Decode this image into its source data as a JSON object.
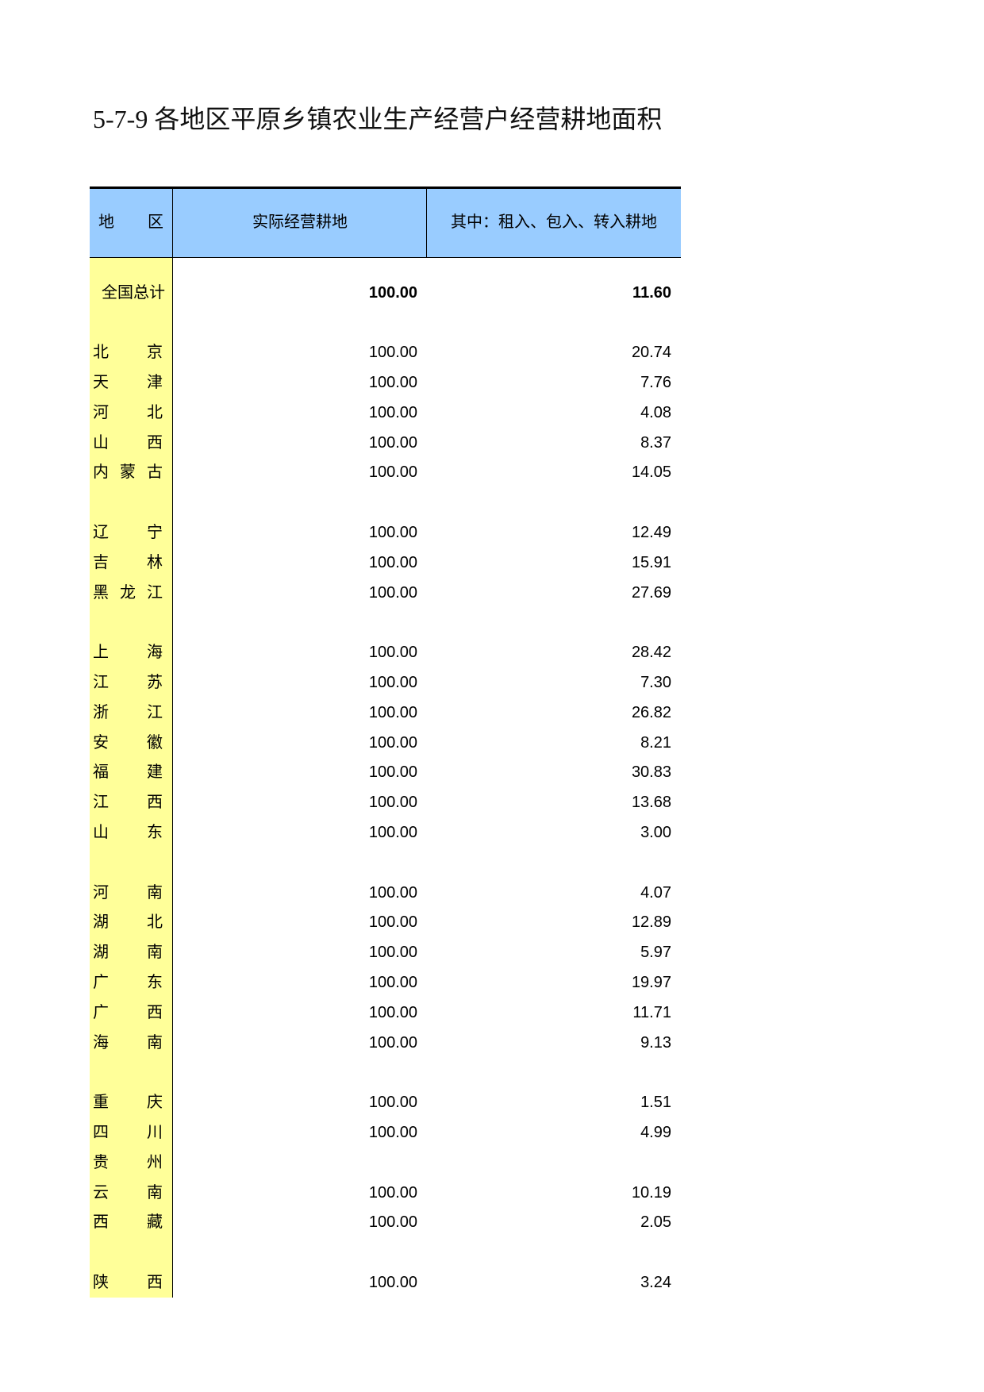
{
  "title": "5-7-9  各地区平原乡镇农业生产经营户经营耕地面积",
  "table": {
    "header": [
      "地区",
      "实际经营耕地",
      "其中：租入、包入、转入耕地"
    ],
    "total": {
      "region": "全国总计",
      "values": [
        "100.00",
        "11.60"
      ]
    },
    "groups": [
      [
        {
          "region": "北京",
          "values": [
            "100.00",
            "20.74"
          ]
        },
        {
          "region": "天津",
          "values": [
            "100.00",
            "7.76"
          ]
        },
        {
          "region": "河北",
          "values": [
            "100.00",
            "4.08"
          ]
        },
        {
          "region": "山西",
          "values": [
            "100.00",
            "8.37"
          ]
        },
        {
          "region": "内蒙古",
          "values": [
            "100.00",
            "14.05"
          ]
        }
      ],
      [
        {
          "region": "辽宁",
          "values": [
            "100.00",
            "12.49"
          ]
        },
        {
          "region": "吉林",
          "values": [
            "100.00",
            "15.91"
          ]
        },
        {
          "region": "黑龙江",
          "values": [
            "100.00",
            "27.69"
          ]
        }
      ],
      [
        {
          "region": "上海",
          "values": [
            "100.00",
            "28.42"
          ]
        },
        {
          "region": "江苏",
          "values": [
            "100.00",
            "7.30"
          ]
        },
        {
          "region": "浙江",
          "values": [
            "100.00",
            "26.82"
          ]
        },
        {
          "region": "安徽",
          "values": [
            "100.00",
            "8.21"
          ]
        },
        {
          "region": "福建",
          "values": [
            "100.00",
            "30.83"
          ]
        },
        {
          "region": "江西",
          "values": [
            "100.00",
            "13.68"
          ]
        },
        {
          "region": "山东",
          "values": [
            "100.00",
            "3.00"
          ]
        }
      ],
      [
        {
          "region": "河南",
          "values": [
            "100.00",
            "4.07"
          ]
        },
        {
          "region": "湖北",
          "values": [
            "100.00",
            "12.89"
          ]
        },
        {
          "region": "湖南",
          "values": [
            "100.00",
            "5.97"
          ]
        },
        {
          "region": "广东",
          "values": [
            "100.00",
            "19.97"
          ]
        },
        {
          "region": "广西",
          "values": [
            "100.00",
            "11.71"
          ]
        },
        {
          "region": "海南",
          "values": [
            "100.00",
            "9.13"
          ]
        }
      ],
      [
        {
          "region": "重庆",
          "values": [
            "100.00",
            "1.51"
          ]
        },
        {
          "region": "四川",
          "values": [
            "100.00",
            "4.99"
          ]
        },
        {
          "region": "贵州",
          "values": [
            null,
            null
          ]
        },
        {
          "region": "云南",
          "values": [
            "100.00",
            "10.19"
          ]
        },
        {
          "region": "西藏",
          "values": [
            "100.00",
            "2.05"
          ]
        }
      ],
      [
        {
          "region": "陕西",
          "values": [
            "100.00",
            "3.24"
          ]
        }
      ]
    ]
  }
}
